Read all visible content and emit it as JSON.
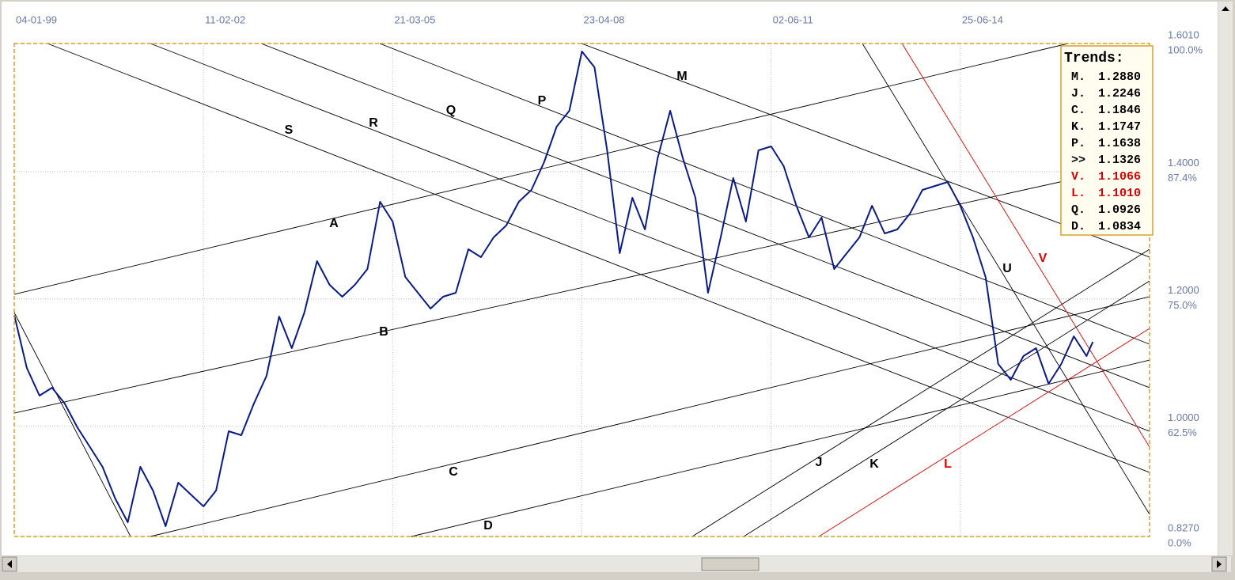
{
  "chart_data": {
    "type": "line",
    "x": [
      0,
      2,
      4,
      6,
      8,
      10,
      12,
      14,
      16,
      18,
      20,
      22,
      24,
      26,
      28,
      30,
      32,
      34,
      36,
      38,
      40,
      42,
      44,
      46,
      48,
      50,
      52,
      54,
      56,
      58,
      60,
      62,
      64,
      66,
      68,
      70,
      72,
      74,
      76,
      78,
      80,
      82,
      84,
      86,
      88,
      90,
      92,
      94,
      96,
      98,
      100,
      102,
      104,
      106,
      108,
      110,
      112,
      114,
      116,
      118,
      120,
      122,
      124,
      126,
      128,
      130,
      132,
      134,
      136,
      138,
      140,
      142,
      144,
      146,
      148,
      150,
      152,
      154,
      156,
      158,
      160,
      162,
      164,
      166,
      168,
      170,
      171
    ],
    "series": [
      {
        "color": "#0a1a8a",
        "values": [
          1.1749,
          1.0916,
          1.0481,
          1.0606,
          1.0357,
          0.9985,
          0.9674,
          0.9363,
          0.8866,
          0.8494,
          0.9363,
          0.8991,
          0.8432,
          0.9115,
          0.8928,
          0.8742,
          0.8991,
          0.9922,
          0.986,
          1.0357,
          1.0792,
          1.1724,
          1.1227,
          1.1786,
          1.2594,
          1.2221,
          1.2034,
          1.2221,
          1.2469,
          1.3525,
          1.3215,
          1.2345,
          1.2097,
          1.1848,
          1.2034,
          1.2097,
          1.278,
          1.2656,
          1.2966,
          1.3153,
          1.3525,
          1.3712,
          1.4147,
          1.4706,
          1.4954,
          1.5886,
          1.5637,
          1.4333,
          1.2718,
          1.3587,
          1.309,
          1.4209,
          1.4954,
          1.4209,
          1.3587,
          1.2097,
          1.2966,
          1.3898,
          1.3215,
          1.4333,
          1.4395,
          1.4084,
          1.3463,
          1.2966,
          1.3277,
          1.2469,
          1.2718,
          1.2966,
          1.3463,
          1.3028,
          1.309,
          1.3339,
          1.3712,
          1.3774,
          1.3836,
          1.3463,
          1.2966,
          1.2345,
          1.0978,
          1.073,
          1.1103,
          1.1227,
          1.0668,
          1.0978,
          1.1413,
          1.1103,
          1.1326
        ]
      }
    ],
    "xlim": [
      0,
      180
    ],
    "xticks": [
      {
        "value": 0,
        "label": "04-01-99"
      },
      {
        "value": 30,
        "label": "11-02-02"
      },
      {
        "value": 60,
        "label": "21-03-05"
      },
      {
        "value": 90,
        "label": "23-04-08"
      },
      {
        "value": 120,
        "label": "02-06-11"
      },
      {
        "value": 150,
        "label": "25-06-14"
      }
    ],
    "ylim": [
      0.827,
      1.601
    ],
    "yticks": [
      {
        "value": 0.827,
        "label": "0.8270"
      },
      {
        "value": 1.0,
        "label": "1.0000"
      },
      {
        "value": 1.2,
        "label": "1.2000"
      },
      {
        "value": 1.4,
        "label": "1.4000"
      },
      {
        "value": 1.601,
        "label": "1.6010"
      }
    ],
    "percent_labels": [
      "0.0%",
      "62.5%",
      "75.0%",
      "87.4%",
      "100.0%"
    ],
    "grid": true,
    "trendlines": [
      {
        "color": "#000000",
        "x": [
          0,
          18.44
        ],
        "y": [
          1.1786,
          0.827
        ]
      },
      {
        "name": "S",
        "color": "#000000",
        "x": [
          5.27,
          180
        ],
        "y": [
          1.601,
          0.9276
        ]
      },
      {
        "name": "R",
        "color": "#000000",
        "x": [
          21.58,
          180
        ],
        "y": [
          1.601,
          0.9922
        ]
      },
      {
        "name": "Q",
        "color": "#000000",
        "x": [
          39.14,
          180
        ],
        "y": [
          1.601,
          1.0606
        ]
      },
      {
        "name": "P",
        "color": "#000000",
        "x": [
          57.95,
          180
        ],
        "y": [
          1.601,
          1.1289
        ]
      },
      {
        "name": "M",
        "color": "#000000",
        "x": [
          89.94,
          180
        ],
        "y": [
          1.601,
          1.2656
        ]
      },
      {
        "name": "A",
        "color": "#000000",
        "x": [
          0,
          167.09
        ],
        "y": [
          1.2072,
          1.601
        ]
      },
      {
        "name": "B",
        "color": "#000000",
        "x": [
          0,
          180
        ],
        "y": [
          1.0208,
          1.4147
        ]
      },
      {
        "name": "C",
        "color": "#000000",
        "x": [
          21.58,
          180
        ],
        "y": [
          0.827,
          1.2035
        ]
      },
      {
        "name": "D",
        "color": "#000000",
        "x": [
          62.97,
          180
        ],
        "y": [
          0.827,
          1.104
        ]
      },
      {
        "name": "J",
        "color": "#000000",
        "x": [
          107.5,
          180
        ],
        "y": [
          0.827,
          1.278
        ]
      },
      {
        "name": "K",
        "color": "#000000",
        "x": [
          115.66,
          180
        ],
        "y": [
          0.827,
          1.2283
        ]
      },
      {
        "name": "L",
        "color": "#dd0000",
        "x": [
          127.57,
          180
        ],
        "y": [
          0.827,
          1.1538
        ]
      },
      {
        "name": "V",
        "color": "#dd0000",
        "x": [
          140.75,
          180
        ],
        "y": [
          1.601,
          0.9674
        ]
      },
      {
        "name": "U",
        "color": "#000000",
        "x": [
          134.47,
          180
        ],
        "y": [
          1.601,
          0.8618
        ]
      }
    ],
    "trends": {
      "title": "Trends:",
      "items": [
        {
          "name": "M.",
          "value": "1.2880",
          "color": "#000000"
        },
        {
          "name": "J.",
          "value": "1.2246",
          "color": "#000000"
        },
        {
          "name": "C.",
          "value": "1.1846",
          "color": "#000000"
        },
        {
          "name": "K.",
          "value": "1.1747",
          "color": "#000000"
        },
        {
          "name": "P.",
          "value": "1.1638",
          "color": "#000000"
        },
        {
          "name": ">>",
          "value": "1.1326",
          "color": "#000000"
        },
        {
          "name": "V.",
          "value": "1.1066",
          "color": "#dd0000"
        },
        {
          "name": "L.",
          "value": "1.1010",
          "color": "#dd0000"
        },
        {
          "name": "Q.",
          "value": "1.0926",
          "color": "#000000"
        },
        {
          "name": "D.",
          "value": "1.0834",
          "color": "#000000"
        }
      ]
    }
  }
}
